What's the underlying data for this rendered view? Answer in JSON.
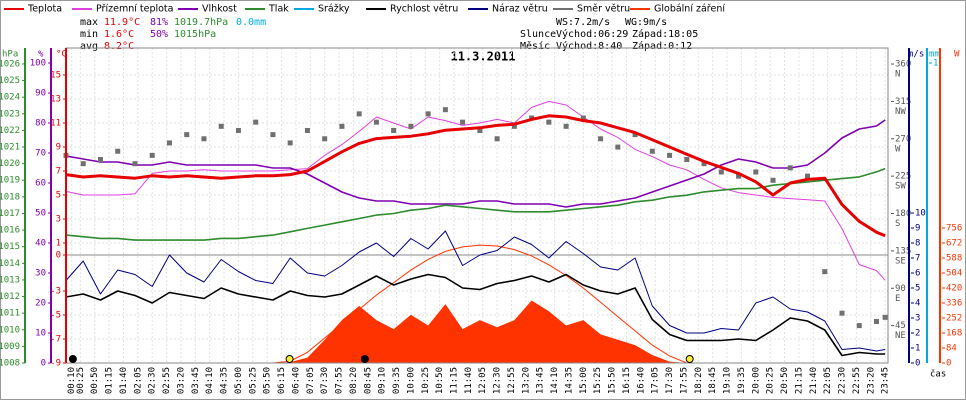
{
  "header": {
    "stats": [
      {
        "label": "max",
        "temp": "11.9°C",
        "hum": "81%",
        "press": "1019.7hPa",
        "rain": "0.0mm"
      },
      {
        "label": "min",
        "temp": "1.6°C",
        "hum": "50%",
        "press": "1015hPa"
      },
      {
        "label": "avg",
        "temp": "8.2°C"
      }
    ],
    "wind": {
      "ws": "WS:7.2m/s",
      "wg": "WG:9m/s"
    },
    "sun": {
      "label": "Slunce",
      "rise_label": "Východ:",
      "rise": "06:29",
      "set_label": "Západ:",
      "set": "18:05"
    },
    "moon": {
      "label": "Měsíc",
      "rise_label": "Východ:",
      "rise": "8:40",
      "set_label": "Západ:",
      "set": "0:12"
    }
  },
  "chart_data": {
    "type": "line",
    "title": "11.3.2011",
    "x_label": "čas",
    "xlim": [
      0,
      1430
    ],
    "xticks": [
      {
        "value": 10,
        "label": "00:10"
      },
      {
        "value": 25,
        "label": "00:25"
      },
      {
        "value": 50,
        "label": "00:50"
      },
      {
        "value": 75,
        "label": "01:15"
      },
      {
        "value": 100,
        "label": "01:40"
      },
      {
        "value": 125,
        "label": "02:05"
      },
      {
        "value": 150,
        "label": "02:30"
      },
      {
        "value": 175,
        "label": "02:55"
      },
      {
        "value": 200,
        "label": "03:20"
      },
      {
        "value": 225,
        "label": "03:45"
      },
      {
        "value": 250,
        "label": "04:10"
      },
      {
        "value": 275,
        "label": "04:35"
      },
      {
        "value": 300,
        "label": "05:00"
      },
      {
        "value": 325,
        "label": "05:25"
      },
      {
        "value": 350,
        "label": "05:50"
      },
      {
        "value": 375,
        "label": "06:15"
      },
      {
        "value": 400,
        "label": "06:40"
      },
      {
        "value": 425,
        "label": "07:05"
      },
      {
        "value": 450,
        "label": "07:30"
      },
      {
        "value": 475,
        "label": "07:55"
      },
      {
        "value": 500,
        "label": "08:20"
      },
      {
        "value": 525,
        "label": "08:45"
      },
      {
        "value": 550,
        "label": "09:10"
      },
      {
        "value": 575,
        "label": "09:35"
      },
      {
        "value": 600,
        "label": "10:00"
      },
      {
        "value": 625,
        "label": "10:25"
      },
      {
        "value": 650,
        "label": "10:50"
      },
      {
        "value": 675,
        "label": "11:15"
      },
      {
        "value": 700,
        "label": "11:40"
      },
      {
        "value": 725,
        "label": "12:05"
      },
      {
        "value": 750,
        "label": "12:30"
      },
      {
        "value": 775,
        "label": "12:55"
      },
      {
        "value": 800,
        "label": "13:20"
      },
      {
        "value": 825,
        "label": "13:45"
      },
      {
        "value": 850,
        "label": "14:10"
      },
      {
        "value": 875,
        "label": "14:35"
      },
      {
        "value": 900,
        "label": "15:00"
      },
      {
        "value": 925,
        "label": "15:25"
      },
      {
        "value": 950,
        "label": "15:50"
      },
      {
        "value": 975,
        "label": "16:15"
      },
      {
        "value": 1000,
        "label": "16:40"
      },
      {
        "value": 1025,
        "label": "17:05"
      },
      {
        "value": 1050,
        "label": "17:30"
      },
      {
        "value": 1075,
        "label": "17:55"
      },
      {
        "value": 1100,
        "label": "18:20"
      },
      {
        "value": 1125,
        "label": "18:45"
      },
      {
        "value": 1150,
        "label": "19:10"
      },
      {
        "value": 1175,
        "label": "19:35"
      },
      {
        "value": 1200,
        "label": "20:00"
      },
      {
        "value": 1225,
        "label": "20:25"
      },
      {
        "value": 1250,
        "label": "20:50"
      },
      {
        "value": 1275,
        "label": "21:15"
      },
      {
        "value": 1300,
        "label": "21:40"
      },
      {
        "value": 1325,
        "label": "22:05"
      },
      {
        "value": 1350,
        "label": "22:30"
      },
      {
        "value": 1375,
        "label": "22:55"
      },
      {
        "value": 1400,
        "label": "23:20"
      },
      {
        "value": 1425,
        "label": "23:45"
      }
    ],
    "x": [
      0,
      30,
      60,
      90,
      120,
      150,
      180,
      210,
      240,
      270,
      300,
      330,
      360,
      390,
      420,
      450,
      480,
      510,
      540,
      570,
      600,
      630,
      660,
      690,
      720,
      750,
      780,
      810,
      840,
      870,
      900,
      930,
      960,
      990,
      1020,
      1050,
      1080,
      1110,
      1140,
      1170,
      1200,
      1230,
      1260,
      1290,
      1320,
      1350,
      1380,
      1410,
      1425
    ],
    "axes": {
      "press": {
        "label": "hPa",
        "color": "#2e8b2e",
        "lim": [
          1008,
          1026.96
        ],
        "ticks": [
          1026,
          1025,
          1024,
          1023,
          1022,
          1021,
          1020,
          1019,
          1018,
          1017,
          1016,
          1015,
          1014,
          1013,
          1012,
          1011,
          1010,
          1009,
          1008
        ]
      },
      "hum": {
        "label": "%",
        "color": "#8000b0",
        "lim": [
          0,
          105
        ],
        "ticks": [
          100,
          90,
          80,
          70,
          60,
          50,
          40,
          30,
          20,
          10,
          0
        ]
      },
      "temp": {
        "label": "°C",
        "color": "#e60000",
        "lim": [
          -9,
          17.25
        ],
        "ticks": [
          15,
          13,
          11,
          9,
          7,
          5,
          3,
          1,
          0,
          -3,
          -5,
          -7,
          -9
        ]
      },
      "dir": {
        "color": "#555555",
        "lim": [
          0,
          379.3
        ],
        "ticks": [
          360,
          315,
          270,
          225,
          180,
          135,
          90,
          45
        ],
        "compass": [
          "N",
          "NW",
          "W",
          "SW",
          "S",
          "SE",
          "E",
          "NE"
        ]
      },
      "wind": {
        "label": "m/s",
        "color": "#000080",
        "lim": [
          0,
          21
        ],
        "ticks": [
          10,
          9,
          8,
          7,
          6,
          5,
          4,
          3,
          2,
          1,
          0
        ]
      },
      "rain": {
        "label": "mm",
        "color": "#00aadd",
        "lim": [
          0,
          1.05
        ],
        "ticks": [
          1
        ]
      },
      "rad": {
        "label": "W",
        "color": "#ff3300",
        "lim": [
          0,
          1764
        ],
        "ticks": [
          756,
          672,
          588,
          504,
          420,
          336,
          252,
          168,
          84,
          0
        ]
      }
    },
    "series": [
      {
        "name": "Teplota",
        "color": "#e60000",
        "axis": "temp",
        "style": "line",
        "width": 3,
        "values": [
          6.7,
          6.5,
          6.6,
          6.5,
          6.4,
          6.6,
          6.5,
          6.6,
          6.5,
          6.4,
          6.5,
          6.6,
          6.6,
          6.7,
          7.0,
          7.8,
          8.6,
          9.3,
          9.7,
          9.8,
          9.9,
          10.1,
          10.4,
          10.5,
          10.6,
          10.8,
          10.9,
          11.3,
          11.6,
          11.5,
          11.2,
          11.0,
          10.6,
          10.2,
          9.6,
          9.0,
          8.4,
          7.8,
          7.3,
          6.8,
          6.1,
          5.0,
          6.0,
          6.3,
          6.4,
          4.2,
          2.8,
          1.9,
          1.6
        ]
      },
      {
        "name": "Přízemní teplota",
        "color": "#e040e0",
        "axis": "temp",
        "style": "line",
        "width": 1,
        "values": [
          5.3,
          5.0,
          5.0,
          5.0,
          5.1,
          6.8,
          7.0,
          7.0,
          7.1,
          7.0,
          7.0,
          7.0,
          7.0,
          7.1,
          7.2,
          8.3,
          9.2,
          10.3,
          11.5,
          11.0,
          10.5,
          11.5,
          11.2,
          10.8,
          11.0,
          11.3,
          11.0,
          12.3,
          12.8,
          12.5,
          11.5,
          10.5,
          9.8,
          8.8,
          8.2,
          7.5,
          7.1,
          6.3,
          5.6,
          5.2,
          5.0,
          4.8,
          4.7,
          4.6,
          4.5,
          2.2,
          -0.8,
          -1.3,
          -2.1
        ]
      },
      {
        "name": "Vlhkost",
        "color": "#8000b0",
        "axis": "hum",
        "style": "line",
        "width": 1.6,
        "values": [
          69,
          68,
          67,
          67,
          66,
          66,
          67,
          66,
          66,
          66,
          66,
          66,
          65,
          65,
          63,
          60,
          57,
          55,
          54,
          54,
          53,
          53,
          53,
          53,
          54,
          54,
          53,
          53,
          53,
          52,
          53,
          53,
          54,
          55,
          57,
          59,
          61,
          63,
          66,
          68,
          67,
          65,
          65,
          66,
          70,
          75,
          78,
          79,
          81
        ]
      },
      {
        "name": "Tlak",
        "color": "#2e8b2e",
        "axis": "press",
        "style": "line",
        "width": 1.6,
        "values": [
          1015.7,
          1015.6,
          1015.5,
          1015.5,
          1015.4,
          1015.4,
          1015.4,
          1015.4,
          1015.4,
          1015.5,
          1015.5,
          1015.6,
          1015.7,
          1015.9,
          1016.1,
          1016.3,
          1016.5,
          1016.7,
          1016.9,
          1017.0,
          1017.2,
          1017.3,
          1017.5,
          1017.4,
          1017.3,
          1017.2,
          1017.1,
          1017.1,
          1017.1,
          1017.2,
          1017.3,
          1017.4,
          1017.5,
          1017.7,
          1017.8,
          1018.0,
          1018.1,
          1018.3,
          1018.4,
          1018.5,
          1018.5,
          1018.7,
          1018.8,
          1018.9,
          1019.0,
          1019.1,
          1019.2,
          1019.5,
          1019.7
        ]
      },
      {
        "name": "Srážky",
        "color": "#00aadd",
        "axis": "rain",
        "style": "line"
      },
      {
        "name": "Rychlost větru",
        "color": "#000000",
        "axis": "wind",
        "style": "line",
        "width": 1.6,
        "values": [
          4.4,
          4.6,
          4.2,
          4.8,
          4.5,
          4.0,
          4.7,
          4.5,
          4.3,
          5.0,
          4.6,
          4.4,
          4.2,
          4.8,
          4.5,
          4.4,
          4.6,
          5.2,
          5.8,
          5.2,
          5.6,
          5.9,
          5.7,
          5.0,
          4.9,
          5.3,
          5.5,
          5.8,
          5.4,
          5.9,
          5.2,
          4.8,
          4.6,
          5.0,
          2.9,
          1.9,
          1.5,
          1.5,
          1.5,
          1.6,
          1.5,
          2.2,
          3.0,
          2.8,
          2.2,
          0.5,
          0.7,
          0.6,
          0.6
        ]
      },
      {
        "name": "Náraz větru",
        "color": "#000080",
        "axis": "wind",
        "style": "line",
        "width": 1,
        "values": [
          5.5,
          6.8,
          4.6,
          6.2,
          5.9,
          5.1,
          7.2,
          6.0,
          5.4,
          6.9,
          6.1,
          5.5,
          5.3,
          7.0,
          6.0,
          5.8,
          6.5,
          7.4,
          8.0,
          7.1,
          8.3,
          7.6,
          8.8,
          6.5,
          7.2,
          7.5,
          8.4,
          7.9,
          7.0,
          8.1,
          7.3,
          6.4,
          6.2,
          7.0,
          3.8,
          2.5,
          2.0,
          2.0,
          2.3,
          2.2,
          4.0,
          4.4,
          3.6,
          3.4,
          2.8,
          0.9,
          1.0,
          0.8,
          0.9
        ]
      },
      {
        "name": "Směr větru",
        "color": "#707070",
        "axis": "dir",
        "style": "scatter",
        "values": [
          250,
          240,
          245,
          255,
          240,
          250,
          265,
          275,
          270,
          285,
          280,
          290,
          275,
          265,
          280,
          270,
          285,
          300,
          290,
          280,
          285,
          300,
          305,
          290,
          280,
          270,
          285,
          295,
          290,
          285,
          295,
          270,
          260,
          275,
          255,
          250,
          245,
          240,
          230,
          225,
          230,
          220,
          235,
          225,
          110,
          60,
          45,
          50,
          55
        ]
      },
      {
        "name": "Globální záření",
        "color": "#ff3300",
        "axis": "rad",
        "style": "area",
        "values": [
          0,
          0,
          0,
          0,
          0,
          0,
          0,
          0,
          0,
          0,
          0,
          0,
          0,
          5,
          30,
          130,
          240,
          320,
          240,
          190,
          270,
          210,
          330,
          190,
          240,
          200,
          240,
          350,
          290,
          210,
          240,
          160,
          130,
          100,
          45,
          8,
          0,
          0,
          0,
          0,
          0,
          0,
          0,
          0,
          0,
          0,
          0,
          0,
          0
        ],
        "reference_values": [
          0,
          0,
          0,
          0,
          0,
          0,
          0,
          0,
          0,
          0,
          0,
          0,
          0,
          10,
          60,
          140,
          220,
          300,
          380,
          450,
          520,
          580,
          625,
          650,
          660,
          655,
          635,
          600,
          550,
          490,
          420,
          340,
          260,
          180,
          100,
          40,
          0,
          0,
          0,
          0,
          0,
          0,
          0,
          0,
          0,
          0,
          0,
          0,
          0
        ]
      }
    ]
  }
}
